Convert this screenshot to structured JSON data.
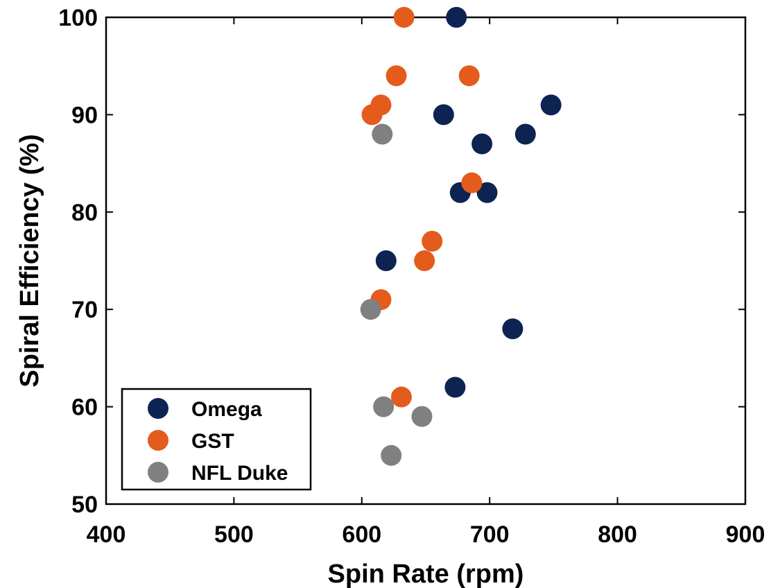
{
  "chart_data": {
    "type": "scatter",
    "xlabel": "Spin Rate (rpm)",
    "ylabel": "Spiral Efficiency (%)",
    "xlim": [
      400,
      900
    ],
    "ylim": [
      50,
      100
    ],
    "xticks": [
      400,
      500,
      600,
      700,
      800,
      900
    ],
    "yticks": [
      50,
      60,
      70,
      80,
      90,
      100
    ],
    "grid": false,
    "legend_position": "bottom-left",
    "series": [
      {
        "name": "Omega",
        "color": "#0d2453",
        "points": [
          {
            "x": 674,
            "y": 100
          },
          {
            "x": 748,
            "y": 91
          },
          {
            "x": 664,
            "y": 90
          },
          {
            "x": 728,
            "y": 88
          },
          {
            "x": 694,
            "y": 87
          },
          {
            "x": 677,
            "y": 82
          },
          {
            "x": 698,
            "y": 82
          },
          {
            "x": 619,
            "y": 75
          },
          {
            "x": 718,
            "y": 68
          },
          {
            "x": 673,
            "y": 62
          }
        ]
      },
      {
        "name": "GST",
        "color": "#e35c1b",
        "points": [
          {
            "x": 633,
            "y": 100
          },
          {
            "x": 627,
            "y": 94
          },
          {
            "x": 684,
            "y": 94
          },
          {
            "x": 615,
            "y": 91
          },
          {
            "x": 608,
            "y": 90
          },
          {
            "x": 686,
            "y": 83
          },
          {
            "x": 655,
            "y": 77
          },
          {
            "x": 649,
            "y": 75
          },
          {
            "x": 615,
            "y": 71
          },
          {
            "x": 631,
            "y": 61
          }
        ]
      },
      {
        "name": "NFL Duke",
        "color": "#808080",
        "points": [
          {
            "x": 616,
            "y": 88
          },
          {
            "x": 607,
            "y": 70
          },
          {
            "x": 617,
            "y": 60
          },
          {
            "x": 647,
            "y": 59
          },
          {
            "x": 623,
            "y": 55
          }
        ]
      }
    ]
  }
}
